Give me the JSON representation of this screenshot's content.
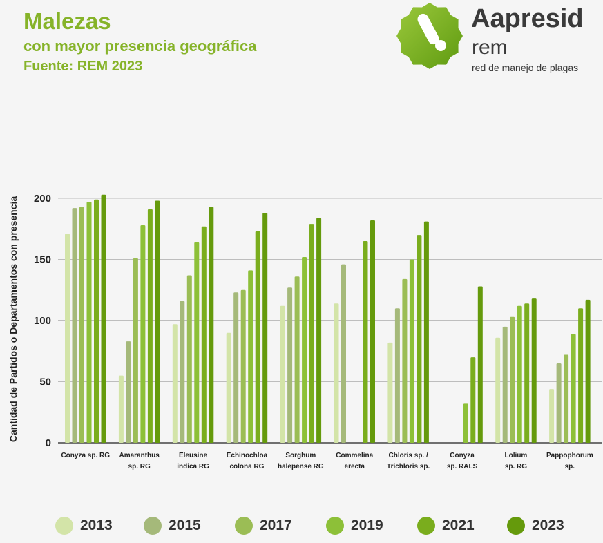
{
  "header": {
    "title": "Malezas",
    "subtitle": "con mayor presencia geográfica",
    "source": "Fuente: REM 2023"
  },
  "logo": {
    "brand": "Aapresid",
    "sub": "rem",
    "tagline": "red de manejo de plagas",
    "icon": "aapresid-badge-icon",
    "color": "#7fb21f"
  },
  "chart_data": {
    "type": "bar",
    "title": "",
    "xlabel": "",
    "ylabel": "Cantidad de Partidos o Departamentos con presencia",
    "ylim": [
      0,
      210
    ],
    "yticks": [
      0,
      50,
      100,
      150,
      200
    ],
    "grid": true,
    "legend_position": "bottom",
    "categories": [
      [
        "Conyza sp. RG"
      ],
      [
        "Amaranthus",
        "sp. RG"
      ],
      [
        "Eleusine",
        "indica RG"
      ],
      [
        "Echinochloa",
        "colona RG"
      ],
      [
        "Sorghum",
        "halepense RG"
      ],
      [
        "Commelina",
        "erecta"
      ],
      [
        "Chloris sp. /",
        "Trichloris sp."
      ],
      [
        "Conyza",
        "sp. RALS"
      ],
      [
        "Lolium",
        "sp. RG"
      ],
      [
        "Pappophorum",
        "sp."
      ]
    ],
    "series": [
      {
        "name": "2013",
        "color": "#d3e4a8",
        "values": [
          171,
          55,
          97,
          90,
          112,
          114,
          82,
          null,
          86,
          44
        ]
      },
      {
        "name": "2015",
        "color": "#a5b97a",
        "values": [
          192,
          83,
          116,
          123,
          127,
          146,
          110,
          null,
          95,
          65
        ]
      },
      {
        "name": "2017",
        "color": "#9bbd55",
        "values": [
          193,
          151,
          137,
          125,
          136,
          null,
          134,
          null,
          103,
          72
        ]
      },
      {
        "name": "2019",
        "color": "#8dc038",
        "values": [
          197,
          178,
          164,
          141,
          152,
          null,
          150,
          32,
          112,
          89
        ]
      },
      {
        "name": "2021",
        "color": "#7aad1d",
        "values": [
          199,
          191,
          177,
          173,
          179,
          165,
          170,
          70,
          114,
          110
        ]
      },
      {
        "name": "2023",
        "color": "#659a0c",
        "values": [
          203,
          198,
          193,
          188,
          184,
          182,
          181,
          128,
          118,
          117
        ]
      }
    ]
  }
}
